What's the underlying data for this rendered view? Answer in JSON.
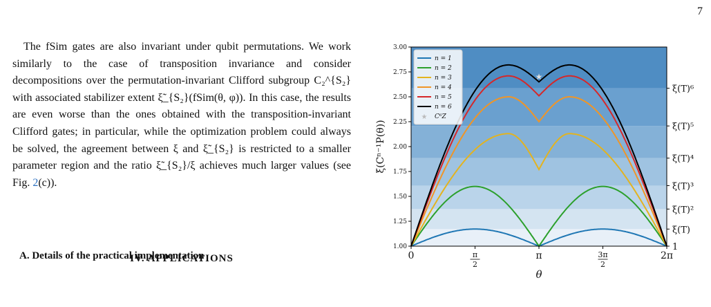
{
  "page": {
    "number": "7"
  },
  "text": {
    "paragraph": "The fSim gates are also invariant under qubit permutations. We work similarly to the case of transposition invariance and consider decompositions over the permutation-invariant Clifford subgroup C₂^{S₂} with associated stabilizer extent ξ̃_{S₂}(fSim(θ, φ)). In this case, the results are even worse than the ones obtained with the transposition-invariant Clifford gates; in particular, while the optimization problem could always be solved, the agreement between ξ and ξ̃_{S₂} is restricted to a smaller parameter region and the ratio ξ̃_{S₂}/ξ achieves much larger values (see Fig. ",
    "fig_ref": "2",
    "paragraph_end": "(c)).",
    "section_heading": "IV.   APPLICATIONS",
    "subsection_heading": "A.   Details of the practical implementation"
  },
  "chart_data": {
    "type": "line",
    "xlabel": "θ",
    "ylabel": "ξ(Cⁿ⁻¹P(θ))",
    "xlim": [
      0,
      6.2832
    ],
    "ylim": [
      1.0,
      3.0
    ],
    "x_ticks": [
      "0",
      "π/2",
      "π",
      "3π/2",
      "2π"
    ],
    "y_ticks": [
      "1.00",
      "1.25",
      "1.50",
      "1.75",
      "2.00",
      "2.25",
      "2.50",
      "2.75",
      "3.00"
    ],
    "right_axis_labels": [
      "1",
      "ξ(T)",
      "ξ(T)²",
      "ξ(T)³",
      "ξ(T)⁴",
      "ξ(T)⁵",
      "ξ(T)⁶"
    ],
    "right_axis_values": [
      1.0,
      1.1716,
      1.3726,
      1.6081,
      1.884,
      2.2073,
      2.586
    ],
    "band_colors": [
      "#e8f0f8",
      "#d4e4f1",
      "#bad4ea",
      "#9fc3e1",
      "#84b1d7",
      "#6aa0cf",
      "#4f8dc3",
      "#2f77b6"
    ],
    "legend_position": "top-left",
    "series": [
      {
        "name": "n = 1",
        "color": "#1f77b4",
        "peak": 1.1716,
        "dip": 1.0
      },
      {
        "name": "n = 2",
        "color": "#2ca02c",
        "peak": 1.6,
        "dip": 1.0
      },
      {
        "name": "n = 3",
        "color": "#e3b31f",
        "peak": 2.13,
        "dip": 1.77
      },
      {
        "name": "n = 4",
        "color": "#f09526",
        "peak": 2.5,
        "dip": 2.25
      },
      {
        "name": "n = 5",
        "color": "#d62728",
        "peak": 2.71,
        "dip": 2.51
      },
      {
        "name": "n = 6",
        "color": "#000000",
        "peak": 2.82,
        "dip": 2.65
      }
    ],
    "marker": {
      "name": "C⁶Z",
      "x": 3.1416,
      "y": 2.7,
      "color": "#dddddd"
    }
  }
}
